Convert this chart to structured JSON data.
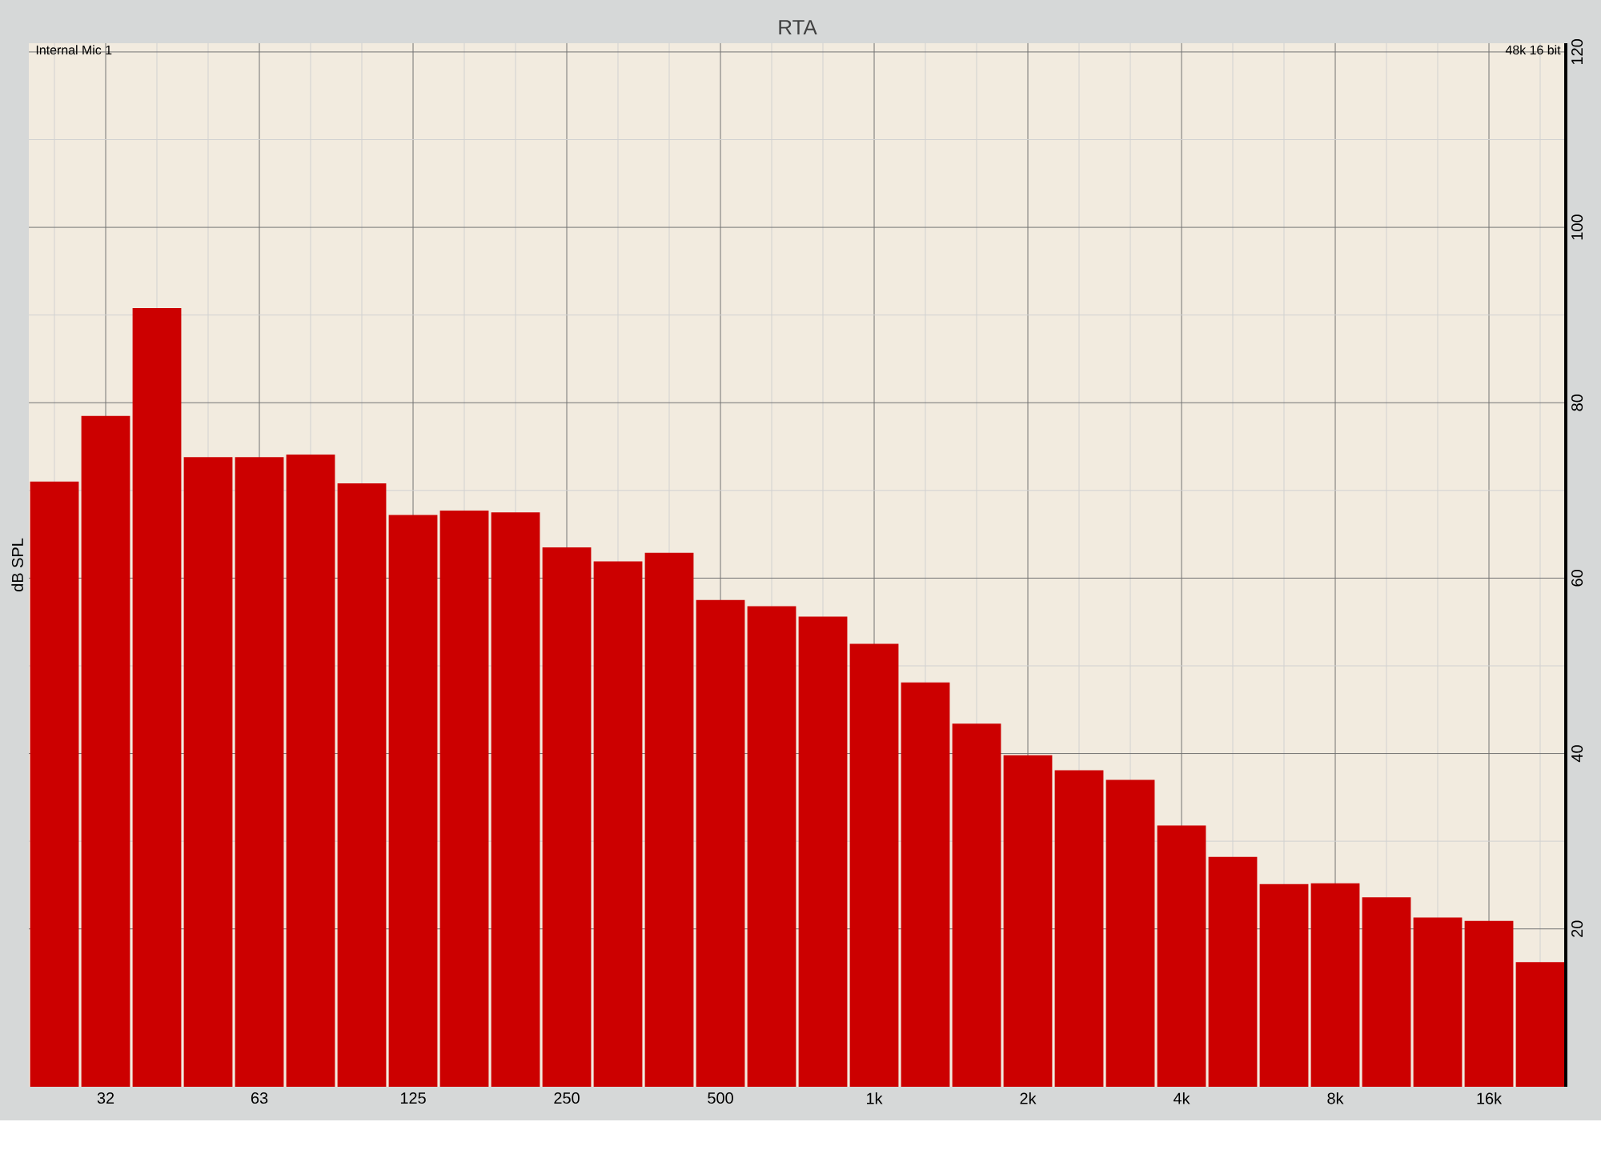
{
  "chart_data": {
    "type": "bar",
    "title": "RTA",
    "ylabel": "dB SPL",
    "annotations": [
      "Internal Mic 1",
      "48k 16 bit"
    ],
    "categories": [
      null,
      "32",
      null,
      null,
      "63",
      null,
      null,
      "125",
      null,
      null,
      "250",
      null,
      null,
      "500",
      null,
      null,
      "1k",
      null,
      null,
      "2k",
      null,
      null,
      "4k",
      null,
      null,
      "8k",
      null,
      null,
      "16k",
      null
    ],
    "values": [
      71.0,
      78.5,
      90.8,
      73.8,
      73.8,
      74.1,
      70.8,
      67.2,
      67.7,
      67.5,
      63.5,
      61.9,
      62.9,
      57.5,
      56.8,
      55.6,
      52.5,
      48.1,
      43.4,
      39.8,
      38.1,
      37.0,
      31.8,
      28.2,
      25.1,
      25.2,
      23.6,
      21.3,
      20.9,
      16.2
    ],
    "color": "#cc0000",
    "ylim": [
      2,
      121
    ],
    "yticks": [
      20,
      40,
      60,
      80,
      100,
      120
    ],
    "grid": true
  }
}
